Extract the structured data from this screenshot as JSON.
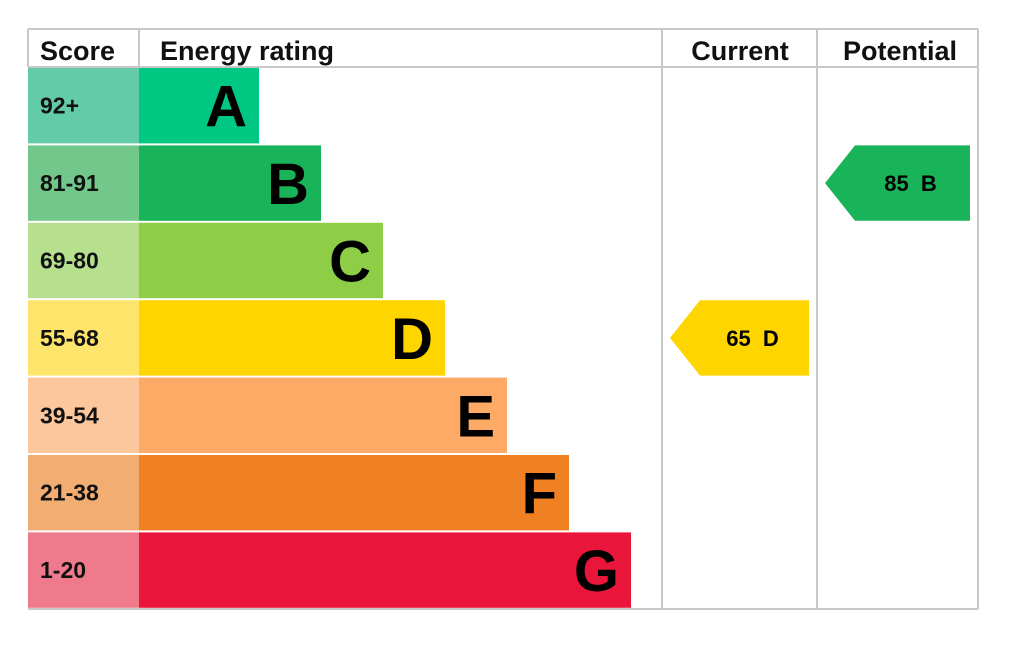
{
  "headers": {
    "score": "Score",
    "rating": "Energy rating",
    "current": "Current",
    "potential": "Potential"
  },
  "chart_data": {
    "type": "bar",
    "bands": [
      {
        "score": "92+",
        "letter": "A",
        "color": "#00c781",
        "score_bg": "#64cba8"
      },
      {
        "score": "81-91",
        "letter": "B",
        "color": "#19b459",
        "score_bg": "#72c88a"
      },
      {
        "score": "69-80",
        "letter": "C",
        "color": "#8dce46",
        "score_bg": "#b6e08e"
      },
      {
        "score": "55-68",
        "letter": "D",
        "color": "#ffd500",
        "score_bg": "#fde46a"
      },
      {
        "score": "39-54",
        "letter": "E",
        "color": "#fcaa65",
        "score_bg": "#fcc79c"
      },
      {
        "score": "21-38",
        "letter": "F",
        "color": "#ef8023",
        "score_bg": "#f2ad72"
      },
      {
        "score": "1-20",
        "letter": "G",
        "color": "#e9153b",
        "score_bg": "#ee7a8c"
      }
    ],
    "current": {
      "value": 65,
      "letter": "D",
      "color": "#ffd500",
      "label": "65  D"
    },
    "potential": {
      "value": 85,
      "letter": "B",
      "color": "#19b459",
      "label": "85  B"
    }
  }
}
